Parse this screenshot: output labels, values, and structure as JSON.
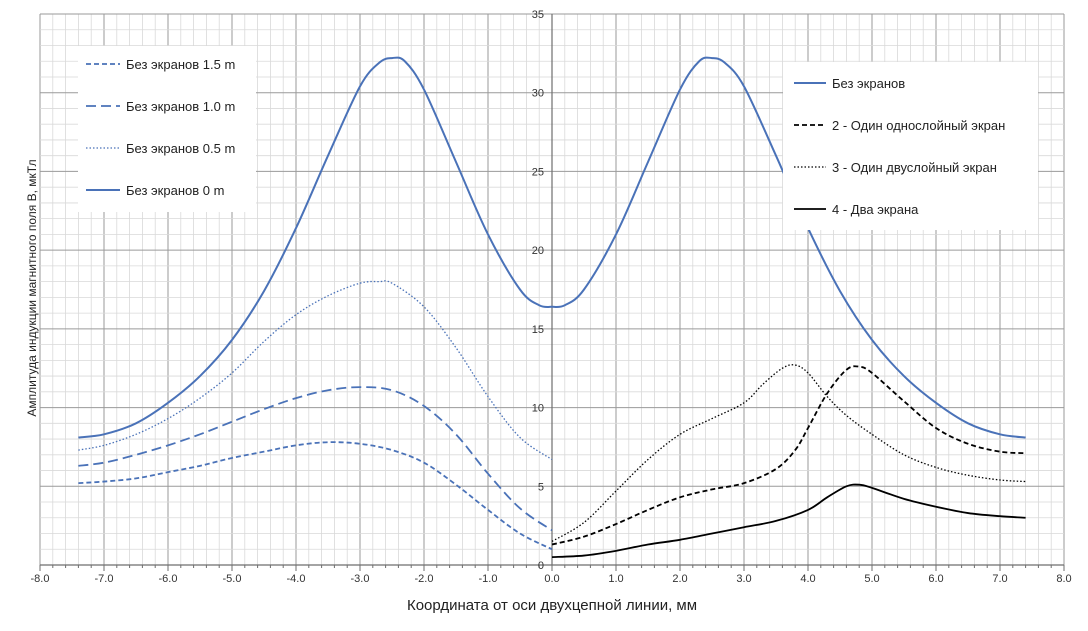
{
  "chart_data": {
    "type": "line",
    "xlabel": "Координата от оси двухцепной линии, мм",
    "ylabel": "Амплитуда индукции  магнитного поля B, мкТл",
    "xlim": [
      -8,
      8
    ],
    "ylim": [
      0,
      35
    ],
    "x_ticks": [
      "-8.0",
      "-7.0",
      "-6.0",
      "-5.0",
      "-4.0",
      "-3.0",
      "-2.0",
      "-1.0",
      "0.0",
      "1.0",
      "2.0",
      "3.0",
      "4.0",
      "5.0",
      "6.0",
      "7.0",
      "8.0"
    ],
    "y_ticks": [
      "0",
      "5",
      "10",
      "15",
      "20",
      "25",
      "30",
      "35"
    ],
    "grid": true,
    "colors": {
      "blue": "#4A72B8",
      "black": "#000000"
    },
    "legends": [
      {
        "placement": "top-left",
        "entries": [
          "Без экранов 1.5 m",
          "Без экранов 1.0 m",
          "Без экранов 0.5 m",
          "Без экранов 0 m"
        ]
      },
      {
        "placement": "top-right",
        "entries": [
          "Без экранов",
          "2 - Один однослойный экран",
          "3 - Один двуслойный экран",
          "4 - Два экрана"
        ]
      }
    ],
    "series": [
      {
        "name": "Без экранов 0 m",
        "legend": 0,
        "color": "#4A72B8",
        "style": "solid",
        "width": 2,
        "x": [
          -7.4,
          -7.0,
          -6.5,
          -6.0,
          -5.5,
          -5.0,
          -4.5,
          -4.0,
          -3.5,
          -3.0,
          -2.7,
          -2.5,
          -2.3,
          -2.0,
          -1.5,
          -1.0,
          -0.5,
          -0.2,
          0.0
        ],
        "y": [
          8.1,
          8.3,
          9.0,
          10.3,
          12.0,
          14.3,
          17.4,
          21.4,
          26.0,
          30.4,
          31.9,
          32.2,
          32.0,
          30.2,
          25.6,
          21.0,
          17.5,
          16.5,
          16.4
        ]
      },
      {
        "name": "Без экранов 0.5 m",
        "legend": 0,
        "color": "#4A72B8",
        "style": "dotted",
        "width": 1.3,
        "x": [
          -7.4,
          -7.0,
          -6.5,
          -6.0,
          -5.5,
          -5.0,
          -4.5,
          -4.0,
          -3.5,
          -3.0,
          -2.7,
          -2.5,
          -2.0,
          -1.5,
          -1.0,
          -0.5,
          0.0
        ],
        "y": [
          7.3,
          7.6,
          8.3,
          9.3,
          10.6,
          12.2,
          14.2,
          15.9,
          17.1,
          17.9,
          18.0,
          17.9,
          16.4,
          13.8,
          10.7,
          8.1,
          6.7
        ]
      },
      {
        "name": "Без экранов 1.0 m",
        "legend": 0,
        "color": "#4A72B8",
        "style": "dashed-long",
        "width": 1.8,
        "x": [
          -7.4,
          -7.0,
          -6.5,
          -6.0,
          -5.5,
          -5.0,
          -4.5,
          -4.0,
          -3.5,
          -3.0,
          -2.5,
          -2.0,
          -1.5,
          -1.0,
          -0.5,
          0.0
        ],
        "y": [
          6.3,
          6.5,
          7.0,
          7.6,
          8.3,
          9.1,
          9.9,
          10.6,
          11.1,
          11.3,
          11.1,
          10.1,
          8.3,
          5.8,
          3.6,
          2.2
        ]
      },
      {
        "name": "Без экранов 1.5 m",
        "legend": 0,
        "color": "#4A72B8",
        "style": "dashed",
        "width": 1.8,
        "x": [
          -7.4,
          -7.0,
          -6.5,
          -6.0,
          -5.5,
          -5.0,
          -4.5,
          -4.0,
          -3.5,
          -3.0,
          -2.5,
          -2.0,
          -1.5,
          -1.0,
          -0.5,
          0.0
        ],
        "y": [
          5.2,
          5.3,
          5.5,
          5.9,
          6.3,
          6.8,
          7.2,
          7.6,
          7.8,
          7.7,
          7.3,
          6.5,
          5.1,
          3.5,
          2.0,
          1.0
        ]
      },
      {
        "name": "Без экранов",
        "legend": 1,
        "color": "#4A72B8",
        "style": "solid",
        "width": 2,
        "x": [
          0.0,
          0.2,
          0.5,
          1.0,
          1.5,
          2.0,
          2.3,
          2.5,
          2.7,
          3.0,
          3.5,
          4.0,
          4.5,
          5.0,
          5.5,
          6.0,
          6.5,
          7.0,
          7.4
        ],
        "y": [
          16.4,
          16.5,
          17.5,
          21.0,
          25.6,
          30.2,
          32.0,
          32.2,
          31.9,
          30.4,
          26.0,
          21.4,
          17.4,
          14.3,
          12.0,
          10.3,
          9.0,
          8.3,
          8.1
        ]
      },
      {
        "name": "2 - Один однослойный экран",
        "legend": 1,
        "color": "#000000",
        "style": "dashed",
        "width": 1.8,
        "x": [
          0.0,
          0.5,
          1.0,
          1.5,
          2.0,
          2.5,
          3.0,
          3.5,
          3.8,
          4.0,
          4.3,
          4.6,
          4.8,
          5.0,
          5.5,
          6.0,
          6.5,
          7.0,
          7.4
        ],
        "y": [
          1.3,
          1.8,
          2.6,
          3.5,
          4.3,
          4.8,
          5.2,
          6.1,
          7.3,
          8.7,
          10.9,
          12.4,
          12.6,
          12.2,
          10.4,
          8.7,
          7.7,
          7.2,
          7.1
        ]
      },
      {
        "name": "3 - Один двуслойный экран",
        "legend": 1,
        "color": "#000000",
        "style": "dotted",
        "width": 1.3,
        "x": [
          0.0,
          0.5,
          1.0,
          1.5,
          2.0,
          2.5,
          3.0,
          3.3,
          3.6,
          3.8,
          4.0,
          4.3,
          4.6,
          5.0,
          5.5,
          6.0,
          6.5,
          7.0,
          7.4
        ],
        "y": [
          1.5,
          2.7,
          4.7,
          6.7,
          8.3,
          9.3,
          10.3,
          11.5,
          12.5,
          12.7,
          12.2,
          10.7,
          9.5,
          8.3,
          7.0,
          6.2,
          5.7,
          5.4,
          5.3
        ]
      },
      {
        "name": "4 - Два экрана",
        "legend": 1,
        "color": "#000000",
        "style": "solid",
        "width": 1.8,
        "x": [
          0.0,
          0.5,
          1.0,
          1.5,
          2.0,
          2.5,
          3.0,
          3.5,
          4.0,
          4.3,
          4.6,
          4.8,
          5.0,
          5.5,
          6.0,
          6.5,
          7.0,
          7.4
        ],
        "y": [
          0.5,
          0.6,
          0.9,
          1.3,
          1.6,
          2.0,
          2.4,
          2.8,
          3.5,
          4.3,
          5.0,
          5.1,
          4.9,
          4.2,
          3.7,
          3.3,
          3.1,
          3.0
        ]
      }
    ]
  }
}
